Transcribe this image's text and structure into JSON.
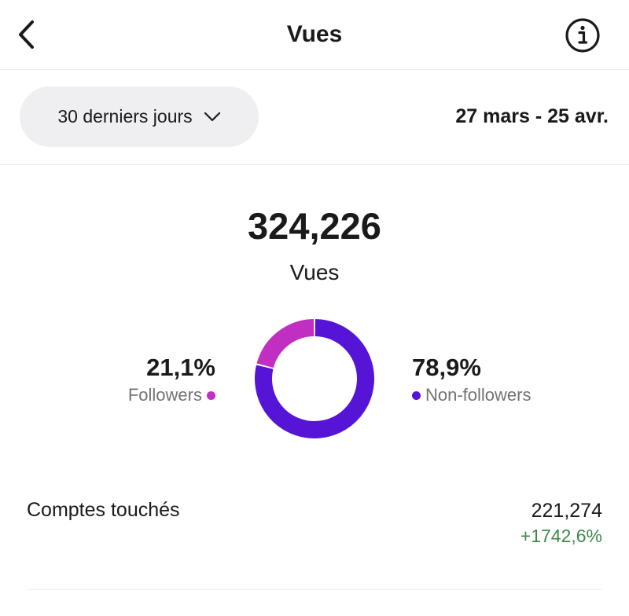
{
  "header": {
    "title": "Vues",
    "back_icon": "chevron-left-icon",
    "info_icon": "info-icon"
  },
  "filter": {
    "range_label": "30 derniers jours",
    "date_range": "27 mars - 25 avr."
  },
  "summary": {
    "total": "324,226",
    "label": "Vues"
  },
  "breakdown": {
    "followers": {
      "percent_text": "21,1%",
      "percent": 21.1,
      "label": "Followers",
      "color": "#c02fc2"
    },
    "non_followers": {
      "percent_text": "78,9%",
      "percent": 78.9,
      "label": "Non-followers",
      "color": "#5614d6"
    }
  },
  "metrics": [
    {
      "label": "Comptes touchés",
      "value": "221,274",
      "change": "+1742,6%",
      "change_color": "#3e8a4a"
    }
  ]
}
